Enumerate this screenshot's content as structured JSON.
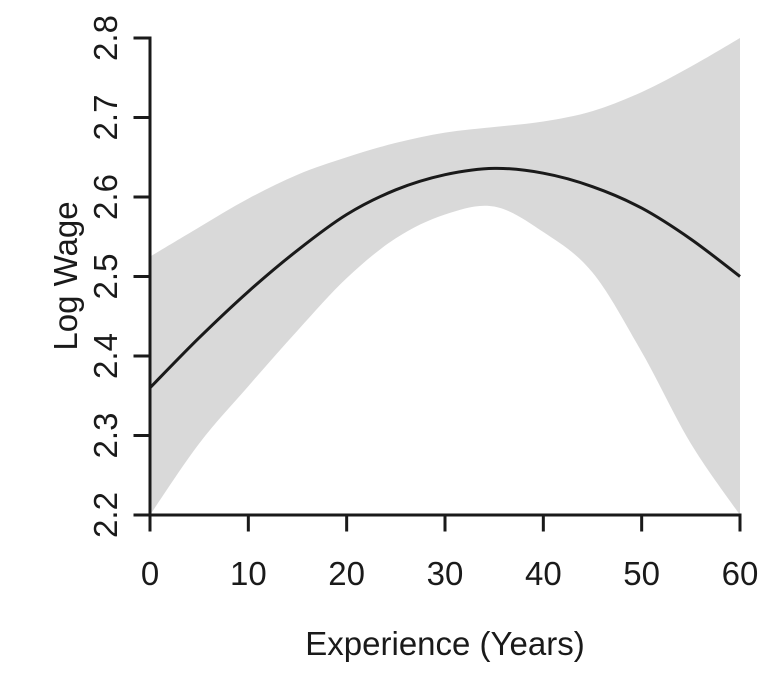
{
  "chart_data": {
    "type": "line",
    "title": "",
    "xlabel": "Experience (Years)",
    "ylabel": "Log Wage",
    "xlim": [
      0,
      60
    ],
    "ylim": [
      2.2,
      2.8
    ],
    "grid": false,
    "legend": "none",
    "background": "#ffffff",
    "axis_color": "#1a1a1a",
    "x_ticks": {
      "values": [
        0,
        10,
        20,
        30,
        40,
        50,
        60
      ],
      "labels": [
        "0",
        "10",
        "20",
        "30",
        "40",
        "50",
        "60"
      ]
    },
    "y_ticks": {
      "values": [
        2.2,
        2.3,
        2.4,
        2.5,
        2.6,
        2.7,
        2.8
      ],
      "labels": [
        "2.2",
        "2.3",
        "2.4",
        "2.5",
        "2.6",
        "2.7",
        "2.8"
      ]
    },
    "x": [
      0,
      5,
      10,
      15,
      20,
      25,
      30,
      35,
      40,
      45,
      50,
      55,
      60
    ],
    "series": [
      {
        "name": "fitted log wage curve",
        "type": "line",
        "color": "#1a1a1a",
        "stroke_width": 3,
        "values": [
          2.36,
          2.423,
          2.481,
          2.533,
          2.578,
          2.609,
          2.628,
          2.636,
          2.63,
          2.613,
          2.586,
          2.547,
          2.5
        ]
      },
      {
        "name": "confidence band upper edge",
        "type": "band-edge",
        "values": [
          2.525,
          2.562,
          2.598,
          2.628,
          2.65,
          2.668,
          2.681,
          2.688,
          2.695,
          2.708,
          2.732,
          2.764,
          2.8
        ]
      },
      {
        "name": "confidence band lower edge",
        "type": "band-edge",
        "values": [
          2.2,
          2.29,
          2.362,
          2.432,
          2.498,
          2.548,
          2.578,
          2.588,
          2.556,
          2.505,
          2.405,
          2.29,
          2.2
        ]
      }
    ],
    "band": {
      "fill": "#d9d9d9",
      "upper_series": 1,
      "lower_series": 2
    }
  }
}
